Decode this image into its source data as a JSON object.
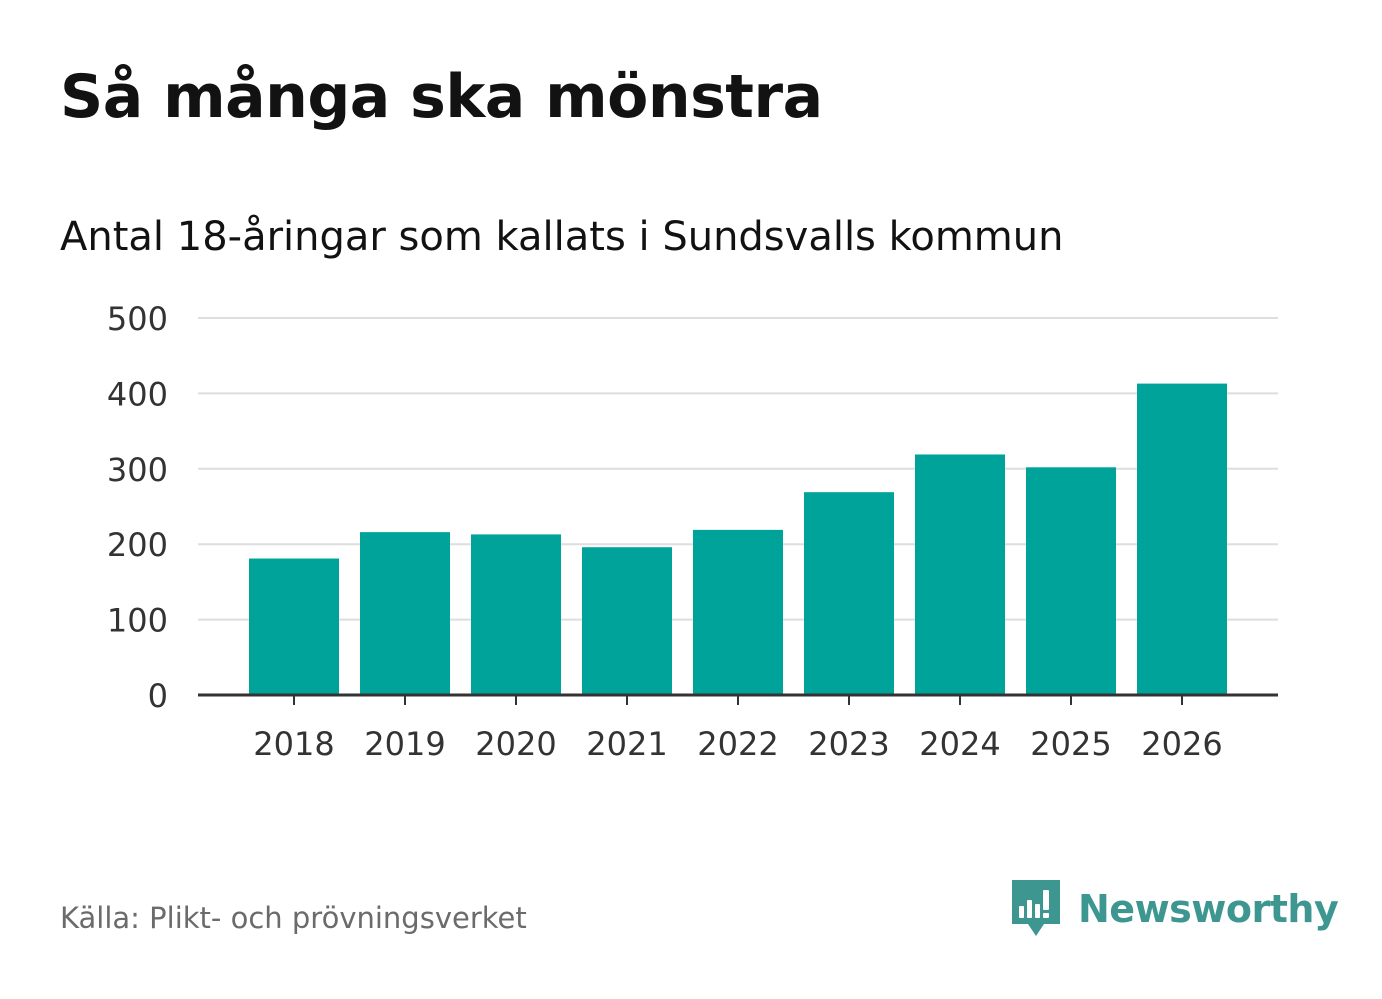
{
  "header": {
    "title": "Så många ska mönstra",
    "subtitle": "Antal 18-åringar som kallats i Sundsvalls kommun"
  },
  "chart_data": {
    "type": "bar",
    "title": "Så många ska mönstra",
    "subtitle": "Antal 18-åringar som kallats i Sundsvalls kommun",
    "categories": [
      "2018",
      "2019",
      "2020",
      "2021",
      "2022",
      "2023",
      "2024",
      "2025",
      "2026"
    ],
    "values": [
      181,
      216,
      213,
      196,
      219,
      269,
      319,
      302,
      413
    ],
    "xlabel": "",
    "ylabel": "",
    "ylim": [
      0,
      500
    ],
    "yticks": [
      0,
      100,
      200,
      300,
      400,
      500
    ],
    "grid": true,
    "bar_color": "#00a39a"
  },
  "footer": {
    "source": "Källa: Plikt- och prövningsverket",
    "brand": "Newsworthy",
    "brand_color": "#3d9690"
  }
}
